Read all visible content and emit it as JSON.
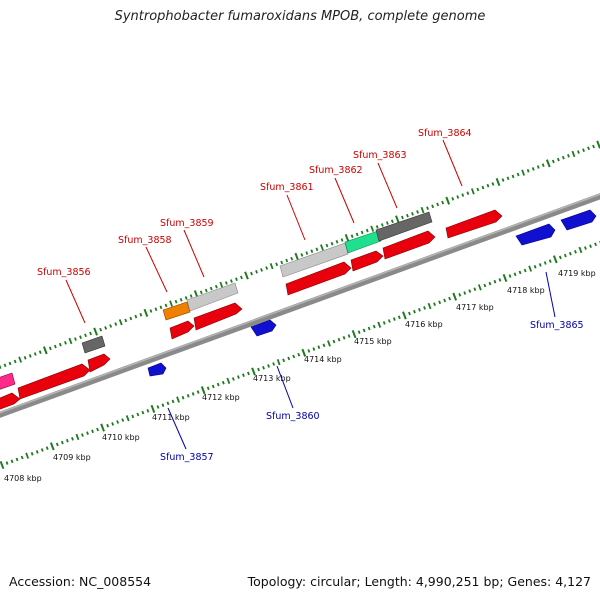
{
  "title": "Syntrophobacter fumaroxidans MPOB, complete genome",
  "footer": {
    "accession": "Accession: NC_008554",
    "genome_info": "Topology: circular; Length: 4,990,251 bp; Genes: 4,127"
  },
  "colors": {
    "backbone": "#8a8a8a",
    "ruler_dots": "#1f7a1f",
    "forward_label": "#cc0000",
    "reverse_label": "#0000aa",
    "feature_red": "#e8000d",
    "feature_blue": "#1010d0",
    "feature_orange": "#f08000",
    "feature_lightgray": "#c8c8c8",
    "feature_darkgray": "#666666",
    "feature_green": "#20e090",
    "feature_pink": "#ff2a8a"
  },
  "ruler_ticks": [
    {
      "kbp": 4708,
      "label": "4708 kbp"
    },
    {
      "kbp": 4709,
      "label": "4709 kbp"
    },
    {
      "kbp": 4710,
      "label": "4710 kbp"
    },
    {
      "kbp": 4711,
      "label": "4711 kbp"
    },
    {
      "kbp": 4712,
      "label": "4712 kbp"
    },
    {
      "kbp": 4713,
      "label": "4713 kbp"
    },
    {
      "kbp": 4714,
      "label": "4714 kbp"
    },
    {
      "kbp": 4715,
      "label": "4715 kbp"
    },
    {
      "kbp": 4716,
      "label": "4716 kbp"
    },
    {
      "kbp": 4717,
      "label": "4717 kbp"
    },
    {
      "kbp": 4718,
      "label": "4718 kbp"
    },
    {
      "kbp": 4719,
      "label": "4719 kbp"
    }
  ],
  "genes": [
    {
      "label": "Sfum_3856",
      "strand": "forward"
    },
    {
      "label": "Sfum_3857",
      "strand": "reverse"
    },
    {
      "label": "Sfum_3858",
      "strand": "forward"
    },
    {
      "label": "Sfum_3859",
      "strand": "forward"
    },
    {
      "label": "Sfum_3860",
      "strand": "reverse"
    },
    {
      "label": "Sfum_3861",
      "strand": "forward"
    },
    {
      "label": "Sfum_3862",
      "strand": "forward"
    },
    {
      "label": "Sfum_3863",
      "strand": "forward"
    },
    {
      "label": "Sfum_3864",
      "strand": "forward"
    },
    {
      "label": "Sfum_3865",
      "strand": "reverse"
    }
  ]
}
